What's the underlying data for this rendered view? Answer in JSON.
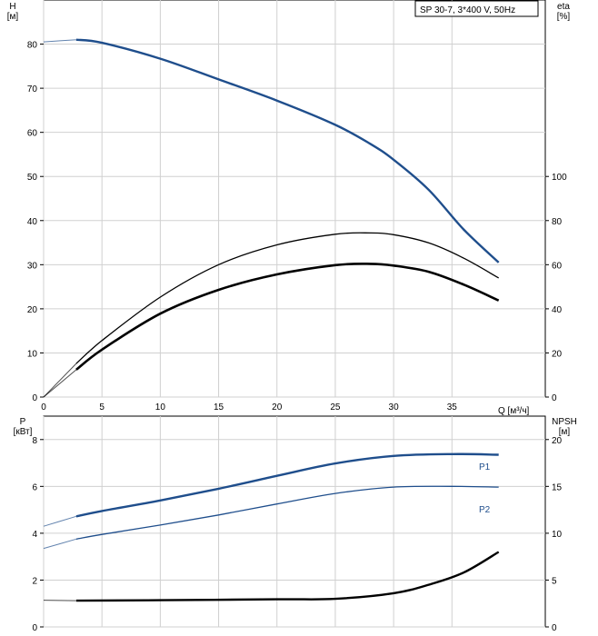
{
  "chart_data": [
    {
      "type": "line",
      "title": "SP 30-7, 3*400 V, 50Hz",
      "xlabel": "Q [м³/ч]",
      "ylabel": "H\n[м]",
      "ylabel_right": "eta\n[%]",
      "xlim": [
        0,
        43
      ],
      "ylim": [
        0,
        90
      ],
      "ylim_right": [
        0,
        180
      ],
      "x_ticks": [
        0,
        5,
        10,
        15,
        20,
        25,
        30,
        35
      ],
      "y_ticks": [
        0,
        10,
        20,
        30,
        40,
        50,
        60,
        70,
        80
      ],
      "y_ticks_right": [
        0,
        20,
        40,
        60,
        80,
        100
      ],
      "grid": true,
      "series": [
        {
          "axis": "left",
          "color": "#1f4e8c",
          "x": [
            0,
            2.8,
            5,
            10,
            15,
            20,
            25,
            28,
            30,
            33,
            36,
            39
          ],
          "y": [
            80.5,
            81.0,
            80.3,
            76.7,
            72.0,
            67.2,
            61.7,
            57.4,
            53.8,
            47.0,
            38.0,
            30.5
          ]
        },
        {
          "axis": "right",
          "color": "#000000",
          "x": [
            0,
            2.8,
            5,
            10,
            15,
            20,
            25,
            28,
            30,
            33,
            36,
            39
          ],
          "y": [
            0,
            15.2,
            25.6,
            45.3,
            60.0,
            69.0,
            73.8,
            74.4,
            73.6,
            69.9,
            63.0,
            54.0
          ]
        },
        {
          "axis": "right",
          "color": "#000000",
          "x": [
            0,
            2.8,
            5,
            10,
            15,
            20,
            25,
            28,
            30,
            33,
            36,
            39
          ],
          "y": [
            0,
            12.4,
            21.5,
            37.8,
            48.6,
            55.6,
            59.8,
            60.4,
            59.6,
            56.8,
            51.0,
            43.8
          ]
        }
      ]
    },
    {
      "type": "line",
      "xlabel": "",
      "ylabel": "P\n[кВт]",
      "ylabel_right": "NPSH\n[м]",
      "xlim": [
        0,
        43
      ],
      "ylim": [
        0,
        9
      ],
      "ylim_right": [
        0,
        22.5
      ],
      "y_ticks": [
        0,
        2,
        4,
        6,
        8
      ],
      "y_ticks_right": [
        0,
        5,
        10,
        15,
        20
      ],
      "grid": true,
      "series": [
        {
          "name": "P1",
          "axis": "left",
          "color": "#1f4e8c",
          "x": [
            0,
            2.8,
            5,
            10,
            15,
            20,
            25,
            30,
            35,
            39
          ],
          "y": [
            4.3,
            4.72,
            4.95,
            5.4,
            5.9,
            6.45,
            6.98,
            7.3,
            7.38,
            7.35
          ]
        },
        {
          "name": "P2",
          "axis": "left",
          "color": "#1f4e8c",
          "x": [
            0,
            2.8,
            5,
            10,
            15,
            20,
            25,
            30,
            35,
            39
          ],
          "y": [
            3.35,
            3.75,
            3.95,
            4.35,
            4.78,
            5.25,
            5.7,
            5.97,
            6.0,
            5.97
          ]
        },
        {
          "axis": "right",
          "color": "#000000",
          "x": [
            0,
            2.8,
            10,
            20,
            25,
            30,
            33,
            36,
            39
          ],
          "y": [
            2.85,
            2.8,
            2.85,
            2.95,
            3.0,
            3.6,
            4.5,
            5.8,
            8.0
          ]
        }
      ]
    }
  ]
}
